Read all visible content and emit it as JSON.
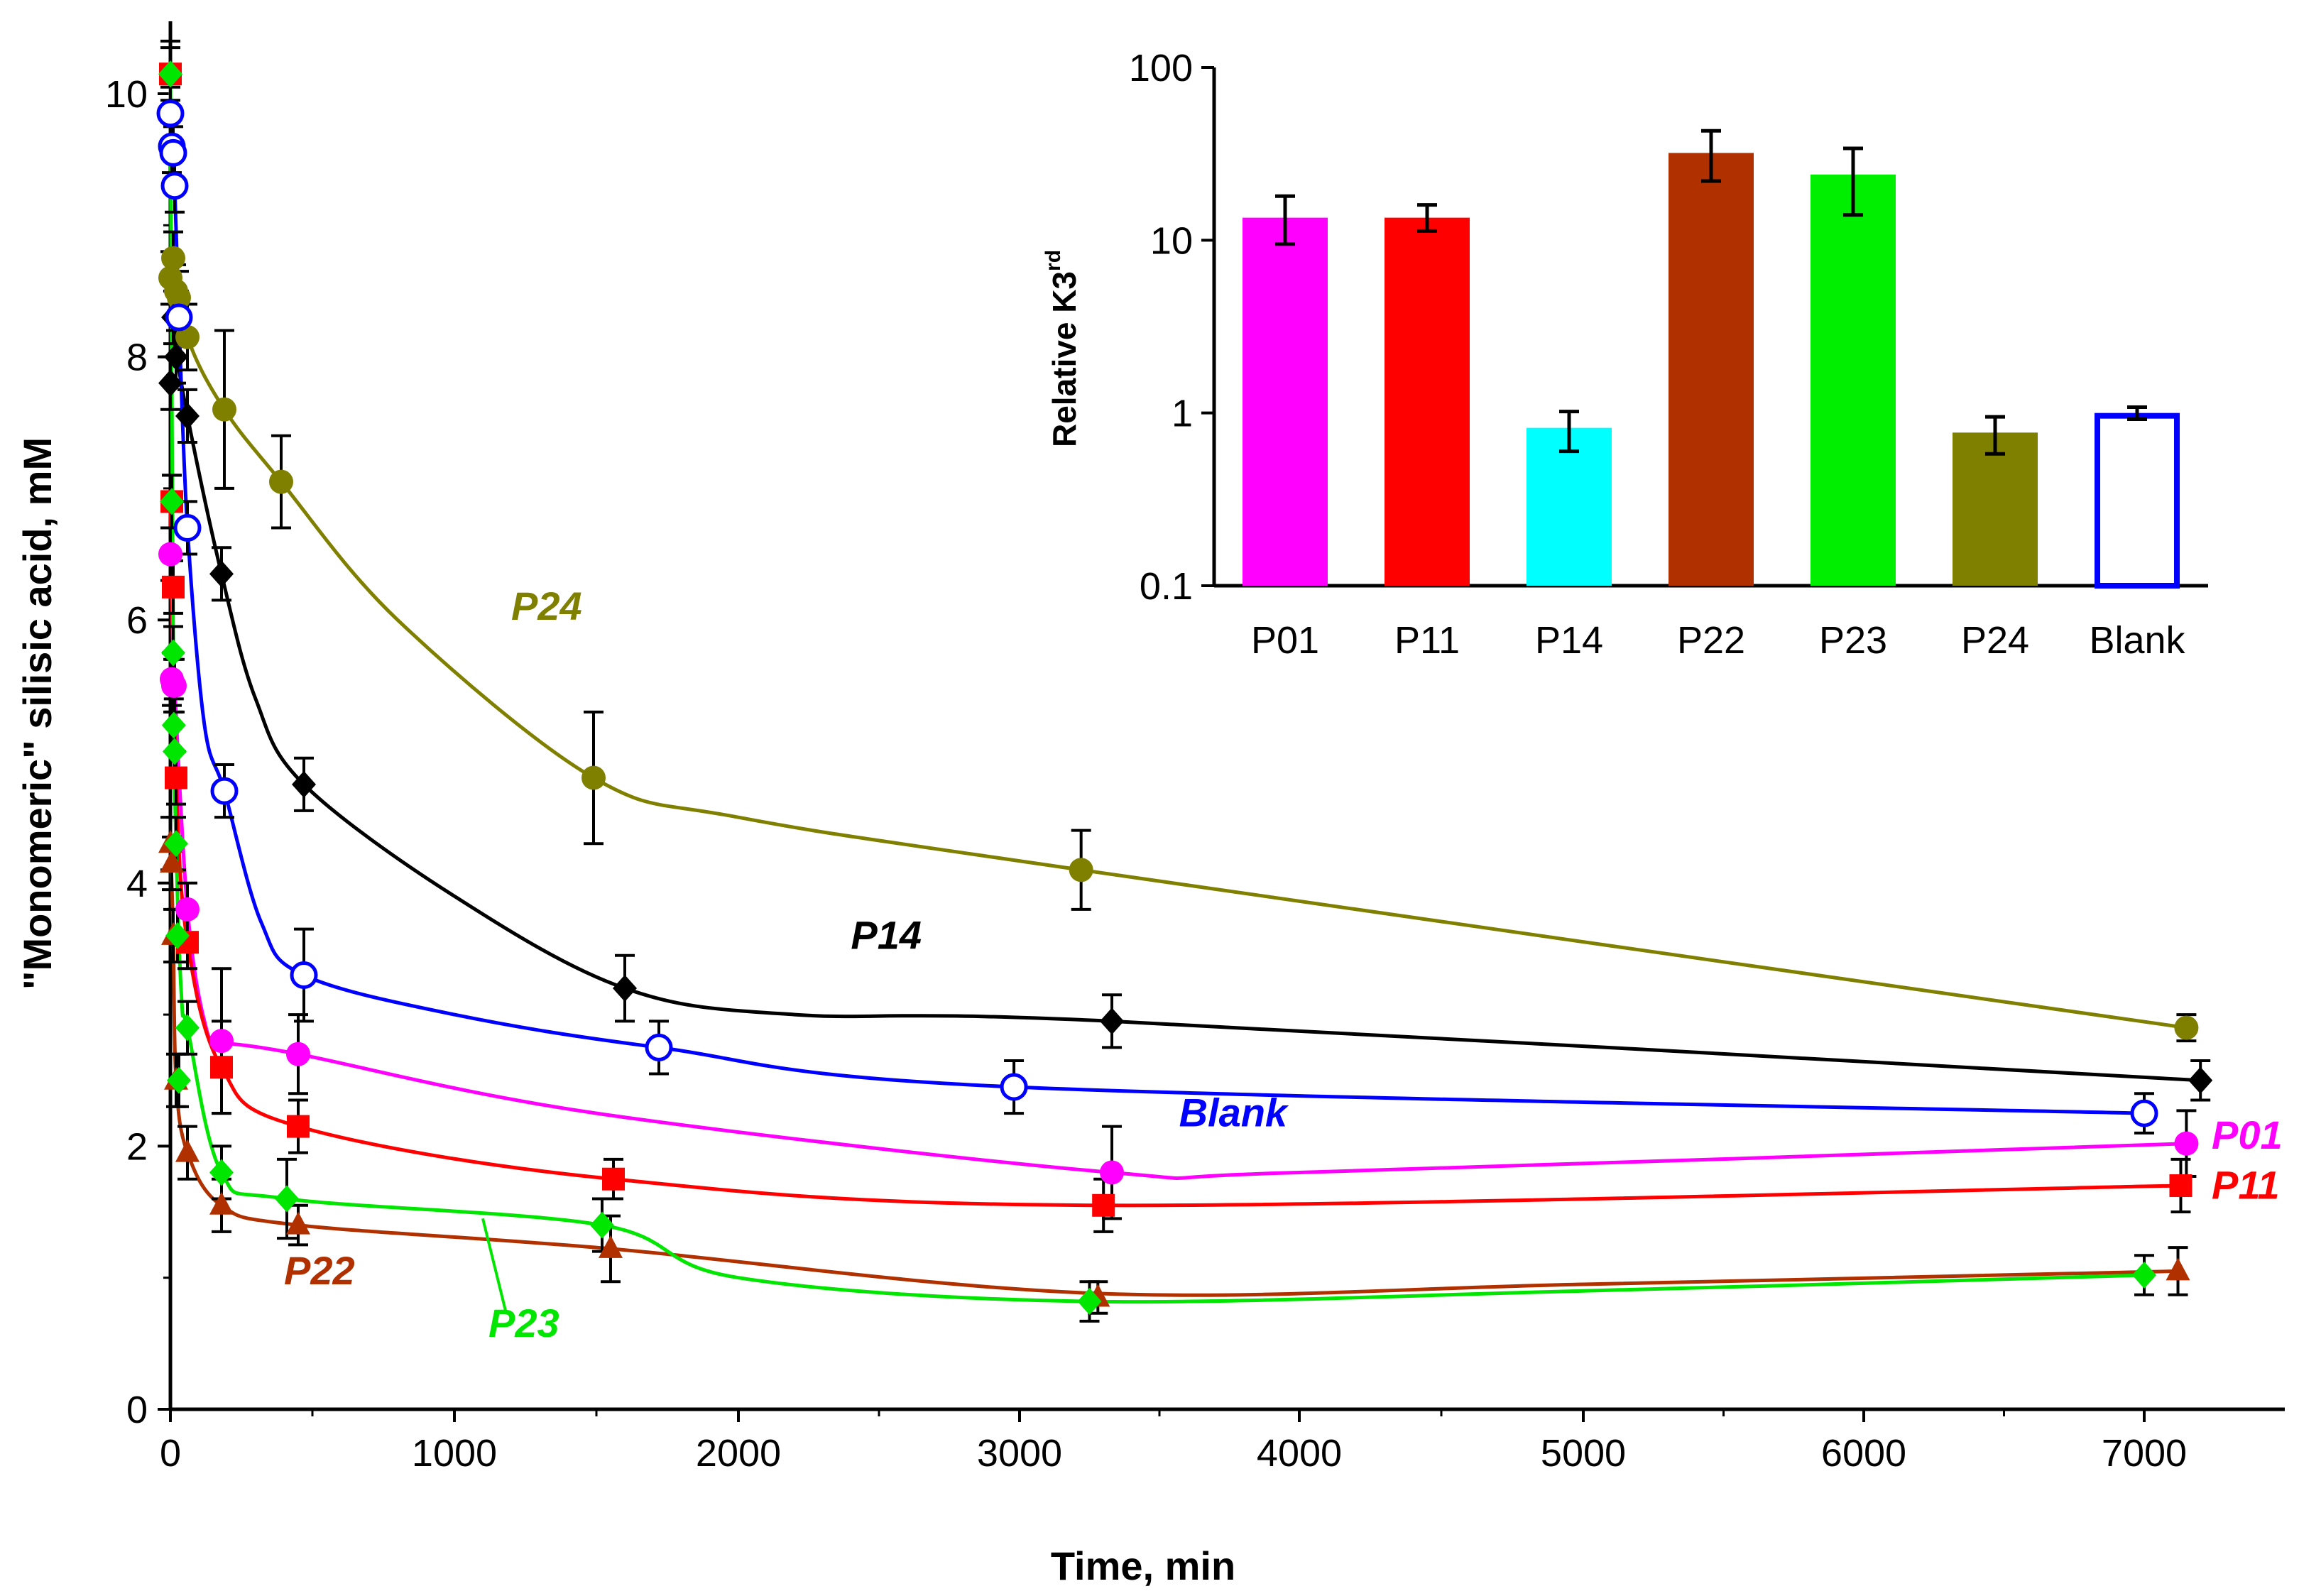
{
  "chart_data": [
    {
      "type": "line",
      "title": "",
      "xlabel": "Time, min",
      "ylabel": "\"Monomeric\" silisic acid, mM",
      "xlim": [
        0,
        7500
      ],
      "ylim": [
        0,
        10.5
      ],
      "xticks": [
        "0",
        "1000",
        "2000",
        "3000",
        "4000",
        "5000",
        "6000",
        "7000"
      ],
      "xtick_values": [
        0,
        1000,
        2000,
        3000,
        4000,
        5000,
        6000,
        7000
      ],
      "yticks": [
        "0",
        "2",
        "4",
        "6",
        "8",
        "10"
      ],
      "ytick_values": [
        0,
        2,
        4,
        6,
        8,
        10
      ],
      "series": [
        {
          "name": "P24",
          "color": "#808000",
          "marker": "circle",
          "label_pos": [
            1200,
            6.0
          ],
          "x": [
            0,
            10,
            20,
            30,
            60,
            190,
            390,
            1490,
            3220,
            7150
          ],
          "y": [
            8.6,
            8.75,
            8.5,
            8.45,
            8.15,
            7.6,
            7.05,
            4.8,
            4.1,
            2.9
          ],
          "err": [
            0.2,
            0.2,
            0.2,
            0.2,
            0.25,
            0.6,
            0.35,
            0.5,
            0.3,
            0.1
          ],
          "curve": [
            [
              0,
              8.8
            ],
            [
              60,
              8.15
            ],
            [
              190,
              7.6
            ],
            [
              390,
              7.05
            ],
            [
              800,
              6.0
            ],
            [
              1490,
              4.8
            ],
            [
              2000,
              4.5
            ],
            [
              3220,
              4.1
            ],
            [
              7150,
              2.9
            ]
          ]
        },
        {
          "name": "P14",
          "color": "#000000",
          "marker": "diamond",
          "label_pos": [
            2400,
            3.5
          ],
          "x": [
            0,
            10,
            20,
            60,
            180,
            470,
            1600,
            3330,
            7200
          ],
          "y": [
            7.8,
            8.3,
            8.0,
            7.55,
            6.35,
            4.75,
            3.2,
            2.95,
            2.5
          ],
          "err": [
            0.2,
            0.2,
            0.2,
            0.2,
            0.2,
            0.2,
            0.25,
            0.2,
            0.15
          ],
          "curve": [
            [
              0,
              8.3
            ],
            [
              60,
              7.55
            ],
            [
              180,
              6.35
            ],
            [
              300,
              5.4
            ],
            [
              470,
              4.75
            ],
            [
              1000,
              3.9
            ],
            [
              1600,
              3.2
            ],
            [
              2200,
              3.0
            ],
            [
              3330,
              2.95
            ],
            [
              7200,
              2.5
            ]
          ]
        },
        {
          "name": "Blank",
          "color": "#0000ff",
          "marker": "open-circle",
          "label_pos": [
            3570,
            2.15
          ],
          "x": [
            0,
            5,
            10,
            15,
            30,
            60,
            190,
            470,
            1720,
            2980,
            7000
          ],
          "y": [
            9.85,
            9.6,
            9.55,
            9.3,
            8.3,
            6.7,
            4.7,
            3.3,
            2.75,
            2.45,
            2.25
          ],
          "err": [
            0.2,
            0.2,
            0.2,
            0.2,
            0.2,
            0.2,
            0.2,
            0.35,
            0.2,
            0.2,
            0.15
          ],
          "curve": [
            [
              0,
              9.85
            ],
            [
              15,
              9.3
            ],
            [
              30,
              8.3
            ],
            [
              60,
              6.7
            ],
            [
              120,
              5.2
            ],
            [
              190,
              4.7
            ],
            [
              320,
              3.7
            ],
            [
              470,
              3.3
            ],
            [
              1000,
              3.0
            ],
            [
              1720,
              2.75
            ],
            [
              2980,
              2.45
            ],
            [
              7000,
              2.25
            ]
          ]
        },
        {
          "name": "P01",
          "color": "#ff00ff",
          "marker": "circle",
          "label_pos": [
            7240,
            1.98
          ],
          "x": [
            0,
            5,
            10,
            15,
            60,
            180,
            450,
            3330,
            7150
          ],
          "y": [
            6.5,
            5.55,
            5.5,
            5.5,
            3.8,
            2.8,
            2.7,
            1.8,
            2.02
          ],
          "err": [
            0.2,
            0.2,
            0.2,
            0.2,
            0.2,
            0.55,
            0.3,
            0.35,
            0.25
          ],
          "curve": [
            [
              0,
              6.5
            ],
            [
              15,
              5.5
            ],
            [
              60,
              3.8
            ],
            [
              120,
              2.95
            ],
            [
              180,
              2.8
            ],
            [
              450,
              2.7
            ],
            [
              1500,
              2.25
            ],
            [
              3330,
              1.8
            ],
            [
              4000,
              1.8
            ],
            [
              7150,
              2.02
            ]
          ]
        },
        {
          "name": "P11",
          "color": "#ff0000",
          "marker": "square",
          "label_pos": [
            7240,
            1.6
          ],
          "x": [
            0,
            5,
            10,
            20,
            60,
            180,
            450,
            1560,
            3300,
            7130
          ],
          "y": [
            10.15,
            6.9,
            6.25,
            4.8,
            3.55,
            2.6,
            2.15,
            1.75,
            1.55,
            1.7
          ],
          "err": [
            0.25,
            0.2,
            0.2,
            0.2,
            0.2,
            0.35,
            0.2,
            0.15,
            0.2,
            0.2
          ],
          "curve": [
            [
              0,
              6.9
            ],
            [
              20,
              4.8
            ],
            [
              60,
              3.55
            ],
            [
              180,
              2.6
            ],
            [
              450,
              2.15
            ],
            [
              1560,
              1.75
            ],
            [
              3300,
              1.55
            ],
            [
              7130,
              1.7
            ]
          ]
        },
        {
          "name": "P22",
          "color": "#b03000",
          "marker": "triangle",
          "label_pos": [
            400,
            0.95
          ],
          "x": [
            0,
            5,
            10,
            20,
            60,
            180,
            450,
            1550,
            3280,
            7120
          ],
          "y": [
            4.3,
            4.15,
            3.6,
            2.5,
            1.95,
            1.55,
            1.4,
            1.22,
            0.85,
            1.05
          ],
          "err": [
            0.2,
            0.2,
            0.2,
            0.2,
            0.2,
            0.2,
            0.15,
            0.25,
            0.12,
            0.18
          ],
          "curve": [
            [
              0,
              4.3
            ],
            [
              10,
              3.6
            ],
            [
              20,
              2.5
            ],
            [
              60,
              1.95
            ],
            [
              180,
              1.55
            ],
            [
              450,
              1.4
            ],
            [
              1550,
              1.22
            ],
            [
              3280,
              0.88
            ],
            [
              5000,
              0.95
            ],
            [
              7120,
              1.05
            ]
          ]
        },
        {
          "name": "P23",
          "color": "#00e600",
          "marker": "diamond",
          "label_pos": [
            1120,
            0.55
          ],
          "x": [
            0,
            5,
            10,
            12,
            15,
            20,
            25,
            30,
            60,
            180,
            410,
            1520,
            3250,
            7000
          ],
          "y": [
            10.15,
            6.9,
            5.75,
            5.2,
            5.0,
            4.3,
            3.6,
            2.5,
            2.9,
            1.8,
            1.6,
            1.4,
            0.82,
            1.02
          ],
          "err": [
            0.2,
            0.2,
            0.2,
            0.2,
            0.2,
            0.2,
            0.2,
            0.2,
            0.2,
            0.2,
            0.3,
            0.2,
            0.15,
            0.15
          ],
          "curve": [
            [
              0,
              10.15
            ],
            [
              10,
              5.75
            ],
            [
              20,
              4.3
            ],
            [
              40,
              3.1
            ],
            [
              60,
              2.9
            ],
            [
              180,
              1.8
            ],
            [
              410,
              1.6
            ],
            [
              1520,
              1.4
            ],
            [
              2000,
              1.0
            ],
            [
              3250,
              0.82
            ],
            [
              5000,
              0.9
            ],
            [
              7000,
              1.02
            ]
          ]
        }
      ],
      "callouts": [
        {
          "color": "#00e600",
          "from": [
            1180,
            0.75
          ],
          "to": [
            1100,
            1.45
          ]
        }
      ]
    },
    {
      "type": "bar",
      "scale": "log",
      "title": "",
      "xlabel": "",
      "ylabel": "Relative K3",
      "ylabel_sup": "rd",
      "ylim": [
        0.1,
        100
      ],
      "yticks": [
        "0.1",
        "1",
        "10",
        "100"
      ],
      "ytick_values": [
        0.1,
        1,
        10,
        100
      ],
      "categories": [
        "P01",
        "P11",
        "P14",
        "P22",
        "P23",
        "P24",
        "Blank"
      ],
      "values": [
        13.5,
        13.5,
        0.82,
        32,
        24,
        0.77,
        1.0
      ],
      "err_low": [
        9.5,
        11.3,
        0.6,
        22,
        14,
        0.58,
        0.92
      ],
      "err_high": [
        18,
        16,
        1.02,
        43,
        34,
        0.95,
        1.08
      ],
      "colors": [
        "#ff00ff",
        "#ff0000",
        "#00ffff",
        "#b03000",
        "#00ee00",
        "#808000",
        "#ffffff"
      ],
      "outline": [
        "#ff00ff",
        "#ff0000",
        "#00ffff",
        "#b03000",
        "#00ee00",
        "#808000",
        "#0000ff"
      ]
    }
  ]
}
